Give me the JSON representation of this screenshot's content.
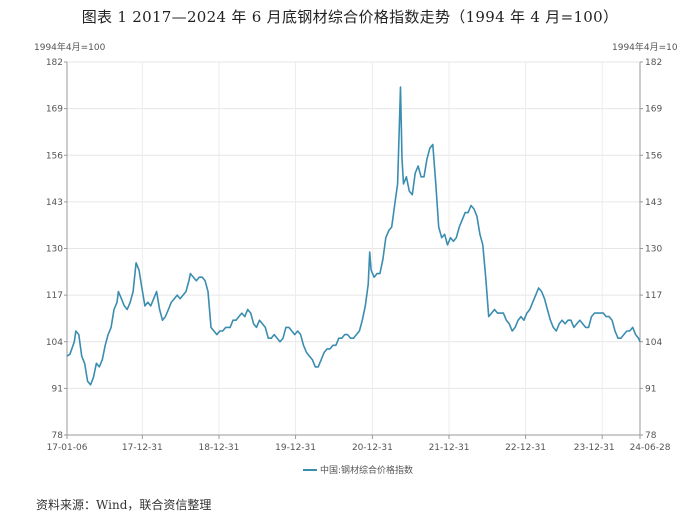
{
  "figure_title": "图表 1 2017—2024 年 6 月底钢材综合价格指数走势（1994 年 4 月=100）",
  "source": "资料来源：Wind，联合资信整理",
  "chart_data": {
    "type": "line",
    "ylabel_left": "1994年4月=100",
    "ylabel_right": "1994年4月=10",
    "ylim": [
      78,
      182
    ],
    "yticks": [
      78,
      91,
      104,
      117,
      130,
      143,
      156,
      169,
      182
    ],
    "xticks": [
      "17-01-06",
      "17-12-31",
      "18-12-31",
      "19-12-31",
      "20-12-31",
      "21-12-31",
      "22-12-31",
      "23-12-31",
      "24-06-28"
    ],
    "xrange": [
      "2017-01-06",
      "2024-06-28"
    ],
    "grid": true,
    "legend_position": "bottom-center",
    "series": [
      {
        "name": "中国:钢材综合价格指数",
        "color": "#3b8db0",
        "points": [
          [
            "2017-01-06",
            100
          ],
          [
            "2017-01-20",
            100.5
          ],
          [
            "2017-02-10",
            104
          ],
          [
            "2017-02-17",
            107
          ],
          [
            "2017-03-03",
            106
          ],
          [
            "2017-03-17",
            100
          ],
          [
            "2017-03-31",
            98
          ],
          [
            "2017-04-14",
            93
          ],
          [
            "2017-04-28",
            92
          ],
          [
            "2017-05-12",
            94
          ],
          [
            "2017-05-26",
            98
          ],
          [
            "2017-06-09",
            97
          ],
          [
            "2017-06-23",
            99
          ],
          [
            "2017-07-07",
            103
          ],
          [
            "2017-07-21",
            106
          ],
          [
            "2017-08-04",
            108
          ],
          [
            "2017-08-18",
            113
          ],
          [
            "2017-09-01",
            115
          ],
          [
            "2017-09-08",
            118
          ],
          [
            "2017-09-22",
            116
          ],
          [
            "2017-10-06",
            114
          ],
          [
            "2017-10-20",
            113
          ],
          [
            "2017-11-03",
            115
          ],
          [
            "2017-11-17",
            118
          ],
          [
            "2017-11-24",
            122
          ],
          [
            "2017-12-01",
            126
          ],
          [
            "2017-12-15",
            124
          ],
          [
            "2017-12-29",
            119
          ],
          [
            "2018-01-12",
            114
          ],
          [
            "2018-01-26",
            115
          ],
          [
            "2018-02-09",
            114
          ],
          [
            "2018-02-23",
            116
          ],
          [
            "2018-03-09",
            118
          ],
          [
            "2018-03-23",
            113
          ],
          [
            "2018-04-06",
            110
          ],
          [
            "2018-04-20",
            111
          ],
          [
            "2018-05-04",
            113
          ],
          [
            "2018-05-18",
            115
          ],
          [
            "2018-06-01",
            116
          ],
          [
            "2018-06-15",
            117
          ],
          [
            "2018-06-29",
            116
          ],
          [
            "2018-07-13",
            117
          ],
          [
            "2018-07-27",
            118
          ],
          [
            "2018-08-10",
            121
          ],
          [
            "2018-08-17",
            123
          ],
          [
            "2018-08-31",
            122
          ],
          [
            "2018-09-14",
            121
          ],
          [
            "2018-09-28",
            122
          ],
          [
            "2018-10-12",
            122
          ],
          [
            "2018-10-26",
            121
          ],
          [
            "2018-11-09",
            118
          ],
          [
            "2018-11-23",
            108
          ],
          [
            "2018-12-07",
            107
          ],
          [
            "2018-12-21",
            106
          ],
          [
            "2019-01-04",
            107
          ],
          [
            "2019-01-18",
            107
          ],
          [
            "2019-02-01",
            108
          ],
          [
            "2019-02-22",
            108
          ],
          [
            "2019-03-08",
            110
          ],
          [
            "2019-03-22",
            110
          ],
          [
            "2019-04-05",
            111
          ],
          [
            "2019-04-19",
            112
          ],
          [
            "2019-05-03",
            111
          ],
          [
            "2019-05-17",
            113
          ],
          [
            "2019-05-31",
            112
          ],
          [
            "2019-06-14",
            109
          ],
          [
            "2019-06-28",
            108
          ],
          [
            "2019-07-12",
            110
          ],
          [
            "2019-07-26",
            109
          ],
          [
            "2019-08-09",
            108
          ],
          [
            "2019-08-23",
            105
          ],
          [
            "2019-09-06",
            105
          ],
          [
            "2019-09-20",
            106
          ],
          [
            "2019-10-04",
            105
          ],
          [
            "2019-10-18",
            104
          ],
          [
            "2019-11-01",
            105
          ],
          [
            "2019-11-15",
            108
          ],
          [
            "2019-11-29",
            108
          ],
          [
            "2019-12-13",
            107
          ],
          [
            "2019-12-27",
            106
          ],
          [
            "2020-01-10",
            107
          ],
          [
            "2020-01-24",
            106
          ],
          [
            "2020-02-07",
            103
          ],
          [
            "2020-02-21",
            101
          ],
          [
            "2020-03-06",
            100
          ],
          [
            "2020-03-20",
            99
          ],
          [
            "2020-04-03",
            97
          ],
          [
            "2020-04-17",
            97
          ],
          [
            "2020-05-01",
            99
          ],
          [
            "2020-05-15",
            101
          ],
          [
            "2020-05-29",
            102
          ],
          [
            "2020-06-12",
            102
          ],
          [
            "2020-06-26",
            103
          ],
          [
            "2020-07-10",
            103
          ],
          [
            "2020-07-24",
            105
          ],
          [
            "2020-08-07",
            105
          ],
          [
            "2020-08-21",
            106
          ],
          [
            "2020-09-04",
            106
          ],
          [
            "2020-09-18",
            105
          ],
          [
            "2020-10-02",
            105
          ],
          [
            "2020-10-16",
            106
          ],
          [
            "2020-10-30",
            107
          ],
          [
            "2020-11-13",
            110
          ],
          [
            "2020-11-27",
            114
          ],
          [
            "2020-12-11",
            120
          ],
          [
            "2020-12-18",
            129
          ],
          [
            "2020-12-25",
            124
          ],
          [
            "2021-01-08",
            122
          ],
          [
            "2021-01-22",
            123
          ],
          [
            "2021-02-05",
            123
          ],
          [
            "2021-02-19",
            127
          ],
          [
            "2021-03-05",
            133
          ],
          [
            "2021-03-19",
            135
          ],
          [
            "2021-04-02",
            136
          ],
          [
            "2021-04-16",
            142
          ],
          [
            "2021-04-30",
            148
          ],
          [
            "2021-05-14",
            175
          ],
          [
            "2021-05-21",
            155
          ],
          [
            "2021-05-28",
            148
          ],
          [
            "2021-06-11",
            150
          ],
          [
            "2021-06-25",
            146
          ],
          [
            "2021-07-09",
            145
          ],
          [
            "2021-07-23",
            151
          ],
          [
            "2021-08-06",
            153
          ],
          [
            "2021-08-20",
            150
          ],
          [
            "2021-09-03",
            150
          ],
          [
            "2021-09-17",
            155
          ],
          [
            "2021-10-01",
            158
          ],
          [
            "2021-10-15",
            159
          ],
          [
            "2021-10-29",
            148
          ],
          [
            "2021-11-12",
            136
          ],
          [
            "2021-11-26",
            133
          ],
          [
            "2021-12-10",
            134
          ],
          [
            "2021-12-24",
            131
          ],
          [
            "2022-01-07",
            133
          ],
          [
            "2022-01-21",
            132
          ],
          [
            "2022-02-04",
            133
          ],
          [
            "2022-02-18",
            136
          ],
          [
            "2022-03-04",
            138
          ],
          [
            "2022-03-18",
            140
          ],
          [
            "2022-04-01",
            140
          ],
          [
            "2022-04-15",
            142
          ],
          [
            "2022-04-29",
            141
          ],
          [
            "2022-05-13",
            139
          ],
          [
            "2022-05-27",
            134
          ],
          [
            "2022-06-10",
            131
          ],
          [
            "2022-06-24",
            122
          ],
          [
            "2022-07-08",
            111
          ],
          [
            "2022-07-22",
            112
          ],
          [
            "2022-08-05",
            113
          ],
          [
            "2022-08-19",
            112
          ],
          [
            "2022-09-02",
            112
          ],
          [
            "2022-09-16",
            112
          ],
          [
            "2022-09-30",
            110
          ],
          [
            "2022-10-14",
            109
          ],
          [
            "2022-10-28",
            107
          ],
          [
            "2022-11-11",
            108
          ],
          [
            "2022-11-25",
            110
          ],
          [
            "2022-12-09",
            111
          ],
          [
            "2022-12-23",
            110
          ],
          [
            "2023-01-06",
            112
          ],
          [
            "2023-01-20",
            113
          ],
          [
            "2023-02-03",
            115
          ],
          [
            "2023-02-17",
            117
          ],
          [
            "2023-03-03",
            119
          ],
          [
            "2023-03-17",
            118
          ],
          [
            "2023-03-31",
            116
          ],
          [
            "2023-04-14",
            113
          ],
          [
            "2023-04-28",
            110
          ],
          [
            "2023-05-12",
            108
          ],
          [
            "2023-05-26",
            107
          ],
          [
            "2023-06-09",
            109
          ],
          [
            "2023-06-23",
            110
          ],
          [
            "2023-07-07",
            109
          ],
          [
            "2023-07-21",
            110
          ],
          [
            "2023-08-04",
            110
          ],
          [
            "2023-08-18",
            108
          ],
          [
            "2023-09-01",
            109
          ],
          [
            "2023-09-15",
            110
          ],
          [
            "2023-09-29",
            109
          ],
          [
            "2023-10-13",
            108
          ],
          [
            "2023-10-27",
            108
          ],
          [
            "2023-11-10",
            111
          ],
          [
            "2023-11-24",
            112
          ],
          [
            "2023-12-08",
            112
          ],
          [
            "2023-12-22",
            112
          ],
          [
            "2024-01-05",
            112
          ],
          [
            "2024-01-19",
            111
          ],
          [
            "2024-02-02",
            111
          ],
          [
            "2024-02-16",
            110
          ],
          [
            "2024-03-01",
            107
          ],
          [
            "2024-03-15",
            105
          ],
          [
            "2024-03-29",
            105
          ],
          [
            "2024-04-12",
            106
          ],
          [
            "2024-04-26",
            107
          ],
          [
            "2024-05-10",
            107
          ],
          [
            "2024-05-24",
            108
          ],
          [
            "2024-06-07",
            106
          ],
          [
            "2024-06-21",
            105
          ],
          [
            "2024-06-28",
            104
          ]
        ]
      }
    ]
  }
}
